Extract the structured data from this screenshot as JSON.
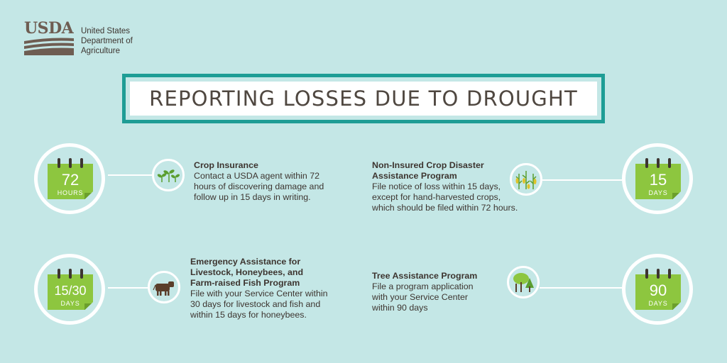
{
  "logo": {
    "letters": "USDA",
    "line1": "United States",
    "line2": "Department of",
    "line3": "Agriculture"
  },
  "title": "REPORTING LOSSES DUE TO DROUGHT",
  "colors": {
    "background": "#c4e7e6",
    "accent": "#1e9d95",
    "calendar": "#8dc63f",
    "text": "#3d3530"
  },
  "items": [
    {
      "calendar_number": "72",
      "calendar_unit": "HOURS",
      "icon": "sprout-icon",
      "heading": "Crop Insurance",
      "lines": [
        "Contact a USDA agent within 72",
        "hours of discovering damage and",
        "follow up in 15 days in writing."
      ]
    },
    {
      "calendar_number": "15",
      "calendar_unit": "DAYS",
      "icon": "corn-icon",
      "heading_lines": [
        "Non-Insured Crop Disaster",
        "Assistance Program"
      ],
      "lines": [
        "File notice of loss within 15 days,",
        "except for hand-harvested crops,",
        "which should be filed within 72 hours."
      ]
    },
    {
      "calendar_number": "15/30",
      "calendar_unit": "DAYS",
      "icon": "cow-icon",
      "heading_lines": [
        "Emergency Assistance for",
        "Livestock, Honeybees, and",
        "Farm-raised Fish Program"
      ],
      "lines": [
        "File with your Service Center within",
        "30 days for livestock and fish and",
        "within 15 days for honeybees."
      ]
    },
    {
      "calendar_number": "90",
      "calendar_unit": "DAYS",
      "icon": "trees-icon",
      "heading": "Tree Assistance Program",
      "lines": [
        "File a program application",
        "with your Service Center",
        "within 90 days"
      ]
    }
  ]
}
